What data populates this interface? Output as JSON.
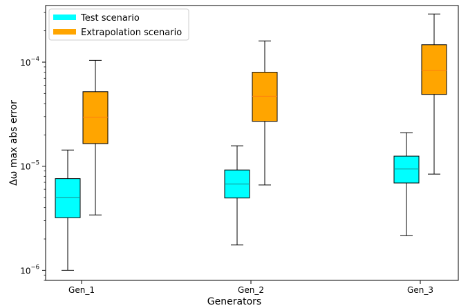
{
  "chart_data": {
    "type": "box",
    "xlabel": "Generators",
    "ylabel": "Δω max abs error",
    "yscale": "log",
    "ylim": [
      8e-07,
      0.00035
    ],
    "y_ticks": [
      {
        "value": 1e-06,
        "label": "10−6"
      },
      {
        "value": 1e-05,
        "label": "10−5"
      },
      {
        "value": 0.0001,
        "label": "10−4"
      }
    ],
    "categories": [
      "Gen_1",
      "Gen_2",
      "Gen_3"
    ],
    "legend": {
      "position": "top-left"
    },
    "series": [
      {
        "name": "Test scenario",
        "color": "#00ffff",
        "median_color": "#1a8a8a",
        "boxes": [
          {
            "whislo": 1e-06,
            "q1": 3.2e-06,
            "med": 5e-06,
            "q3": 7.6e-06,
            "whishi": 1.43e-05
          },
          {
            "whislo": 1.75e-06,
            "q1": 4.95e-06,
            "med": 6.75e-06,
            "q3": 9.2e-06,
            "whishi": 1.57e-05
          },
          {
            "whislo": 2.15e-06,
            "q1": 6.9e-06,
            "med": 9.4e-06,
            "q3": 1.25e-05,
            "whishi": 2.1e-05
          }
        ]
      },
      {
        "name": "Extrapolation scenario",
        "color": "#ffa500",
        "median_color": "#ff7f0e",
        "boxes": [
          {
            "whislo": 3.4e-06,
            "q1": 1.65e-05,
            "med": 2.95e-05,
            "q3": 5.2e-05,
            "whishi": 0.000104
          },
          {
            "whislo": 6.6e-06,
            "q1": 2.7e-05,
            "med": 4.7e-05,
            "q3": 8e-05,
            "whishi": 0.00016
          },
          {
            "whislo": 8.4e-06,
            "q1": 4.9e-05,
            "med": 8.3e-05,
            "q3": 0.000147,
            "whishi": 0.00029
          }
        ]
      }
    ]
  }
}
